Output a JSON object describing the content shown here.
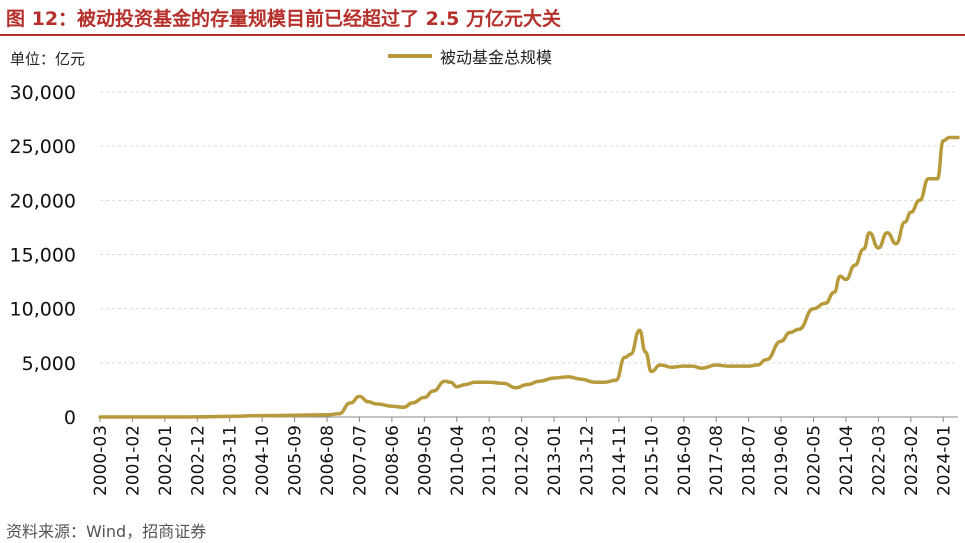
{
  "header": {
    "title": "图 12：被动投资基金的存量规模目前已经超过了 2.5 万亿元大关",
    "unit": "单位：亿元"
  },
  "footer": {
    "source": "资料来源：Wind，招商证券"
  },
  "colors": {
    "line": "#B89A3C",
    "accent": "#B5302B",
    "grid": "#d9d9d9"
  },
  "chart_data": {
    "type": "line",
    "title": "",
    "xlabel": "",
    "ylabel": "",
    "ylim": [
      0,
      30000
    ],
    "yticks": [
      "30,000",
      "25,000",
      "20,000",
      "15,000",
      "10,000",
      "5,000",
      "0"
    ],
    "ytick_values": [
      30000,
      25000,
      20000,
      15000,
      10000,
      5000,
      0
    ],
    "xticks": [
      "2000-03",
      "2001-02",
      "2002-01",
      "2002-12",
      "2003-11",
      "2004-10",
      "2005-09",
      "2006-08",
      "2007-07",
      "2008-06",
      "2009-05",
      "2010-04",
      "2011-03",
      "2012-02",
      "2013-01",
      "2013-12",
      "2014-11",
      "2015-10",
      "2016-09",
      "2017-08",
      "2018-07",
      "2019-06",
      "2020-05",
      "2021-04",
      "2022-03",
      "2023-02",
      "2024-01"
    ],
    "grid": "horizontal",
    "legend_position": "top-center",
    "series": [
      {
        "name": "被动基金总规模",
        "x": [
          "2000-03",
          "2001-02",
          "2002-01",
          "2002-12",
          "2003-11",
          "2004-10",
          "2005-09",
          "2006-08",
          "2006-12",
          "2007-04",
          "2007-07",
          "2007-10",
          "2008-01",
          "2008-06",
          "2008-10",
          "2009-01",
          "2009-05",
          "2009-08",
          "2009-12",
          "2010-02",
          "2010-04",
          "2010-07",
          "2010-10",
          "2011-03",
          "2011-08",
          "2011-12",
          "2012-04",
          "2012-08",
          "2013-01",
          "2013-06",
          "2013-10",
          "2014-03",
          "2014-06",
          "2014-10",
          "2015-01",
          "2015-03",
          "2015-06",
          "2015-08",
          "2015-10",
          "2016-01",
          "2016-05",
          "2016-09",
          "2016-12",
          "2017-03",
          "2017-08",
          "2017-12",
          "2018-03",
          "2018-07",
          "2018-10",
          "2019-01",
          "2019-06",
          "2019-09",
          "2019-12",
          "2020-05",
          "2020-09",
          "2020-12",
          "2021-02",
          "2021-04",
          "2021-07",
          "2021-10",
          "2021-12",
          "2022-03",
          "2022-06",
          "2022-09",
          "2022-12",
          "2023-02",
          "2023-05",
          "2023-08",
          "2023-11",
          "2024-01",
          "2024-03",
          "2024-06"
        ],
        "values": [
          0,
          0,
          0,
          10,
          60,
          130,
          160,
          200,
          300,
          1300,
          1900,
          1400,
          1200,
          1000,
          900,
          1300,
          1800,
          2400,
          3300,
          3200,
          2800,
          3000,
          3200,
          3200,
          3100,
          2700,
          3000,
          3300,
          3600,
          3700,
          3500,
          3200,
          3200,
          3400,
          5500,
          5800,
          8000,
          6000,
          4200,
          4800,
          4600,
          4700,
          4700,
          4500,
          4800,
          4700,
          4700,
          4700,
          4800,
          5300,
          7000,
          7800,
          8100,
          10000,
          10500,
          11500,
          13000,
          12700,
          14000,
          15500,
          17000,
          15600,
          17000,
          16000,
          18000,
          18900,
          20000,
          22000,
          22000,
          25500,
          25800,
          25800
        ]
      }
    ]
  }
}
